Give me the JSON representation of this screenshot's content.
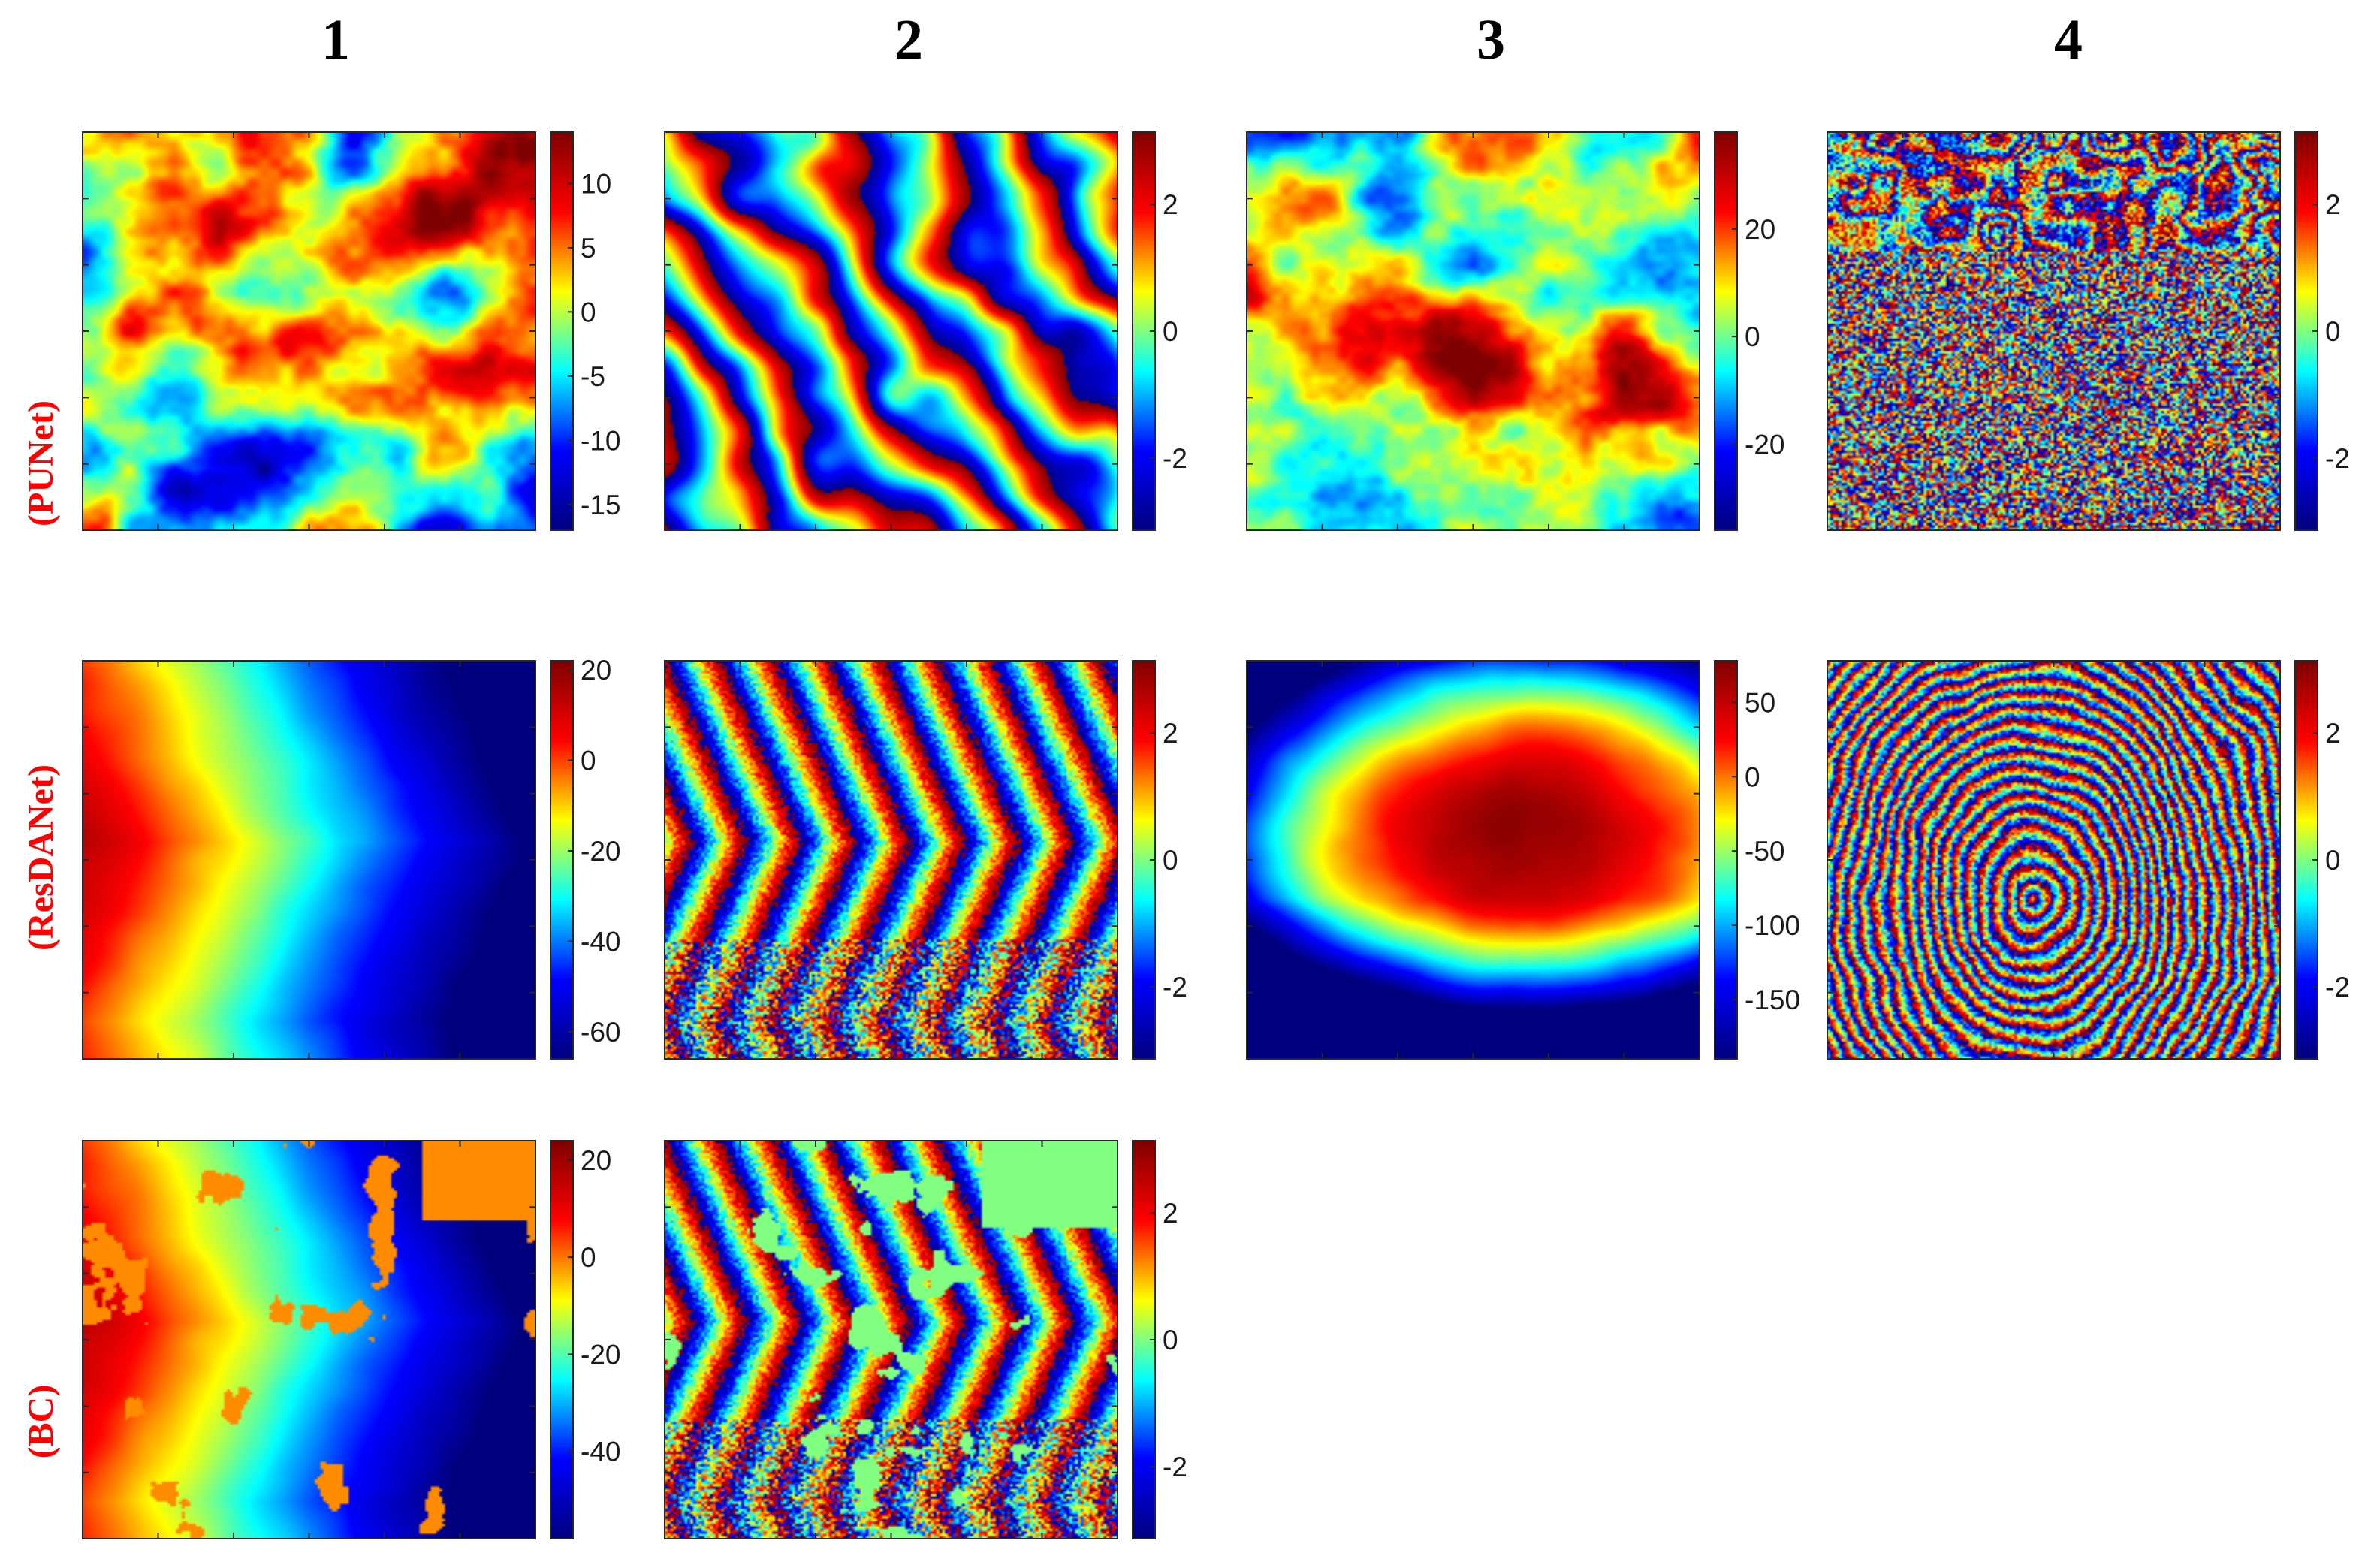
{
  "figure": {
    "column_labels": [
      "1",
      "2",
      "3",
      "4"
    ],
    "row_labels": [
      "(PUNet)",
      "(ResDANet)",
      "(BC)"
    ],
    "colormap": "jet",
    "jet_stops": [
      "#00007f",
      "#0000ff",
      "#00ffff",
      "#ffff00",
      "#ff0000",
      "#7f0000"
    ],
    "bc_fill_colors": {
      "unresolved_orange": "#ff8c00",
      "flat_green": "#80ff80"
    }
  },
  "chart_data": [
    {
      "type": "heatmap",
      "row": 0,
      "col": 0,
      "row_label": "(PUNet)",
      "column_label": "1",
      "kind": "unwrapped",
      "pattern": "punet_blobs",
      "clim": [
        -17,
        14
      ],
      "ticks": [
        10,
        5,
        0,
        -5,
        -10,
        -15
      ]
    },
    {
      "type": "heatmap",
      "row": 0,
      "col": 1,
      "row_label": "(PUNet)",
      "column_label": "2",
      "kind": "wrapped",
      "pattern": "punet_wrapped_diag",
      "clim": [
        -3.14,
        3.14
      ],
      "ticks": [
        2,
        0,
        -2
      ]
    },
    {
      "type": "heatmap",
      "row": 0,
      "col": 2,
      "row_label": "(PUNet)",
      "column_label": "3",
      "kind": "unwrapped",
      "pattern": "punet_bands",
      "clim": [
        -36,
        38
      ],
      "ticks": [
        20,
        0,
        -20
      ]
    },
    {
      "type": "heatmap",
      "row": 0,
      "col": 3,
      "row_label": "(PUNet)",
      "column_label": "4",
      "kind": "wrapped",
      "pattern": "punet_noisy",
      "clim": [
        -3.14,
        3.14
      ],
      "ticks": [
        2,
        0,
        -2
      ]
    },
    {
      "type": "heatmap",
      "row": 1,
      "col": 0,
      "row_label": "(ResDANet)",
      "column_label": "1",
      "kind": "unwrapped",
      "pattern": "chevron_ramp",
      "clim": [
        -66,
        22
      ],
      "ticks": [
        20,
        0,
        -20,
        -40,
        -60
      ]
    },
    {
      "type": "heatmap",
      "row": 1,
      "col": 1,
      "row_label": "(ResDANet)",
      "column_label": "2",
      "kind": "wrapped",
      "pattern": "chevron_fringes",
      "clim": [
        -3.14,
        3.14
      ],
      "ticks": [
        2,
        0,
        -2
      ]
    },
    {
      "type": "heatmap",
      "row": 1,
      "col": 2,
      "row_label": "(ResDANet)",
      "column_label": "3",
      "kind": "unwrapped",
      "pattern": "dome",
      "clim": [
        -190,
        78
      ],
      "ticks": [
        50,
        0,
        -50,
        -100,
        -150
      ]
    },
    {
      "type": "heatmap",
      "row": 1,
      "col": 3,
      "row_label": "(ResDANet)",
      "column_label": "4",
      "kind": "wrapped",
      "pattern": "concentric_fringes",
      "clim": [
        -3.14,
        3.14
      ],
      "ticks": [
        2,
        0,
        -2
      ]
    },
    {
      "type": "heatmap",
      "row": 2,
      "col": 0,
      "row_label": "(BC)",
      "column_label": "1",
      "kind": "unwrapped",
      "pattern": "chevron_ramp_patches",
      "clim": [
        -58,
        24
      ],
      "ticks": [
        20,
        0,
        -20,
        -40
      ]
    },
    {
      "type": "heatmap",
      "row": 2,
      "col": 1,
      "row_label": "(BC)",
      "column_label": "2",
      "kind": "wrapped",
      "pattern": "chevron_fringes_patches",
      "clim": [
        -3.14,
        3.14
      ],
      "ticks": [
        2,
        0,
        -2
      ]
    }
  ]
}
